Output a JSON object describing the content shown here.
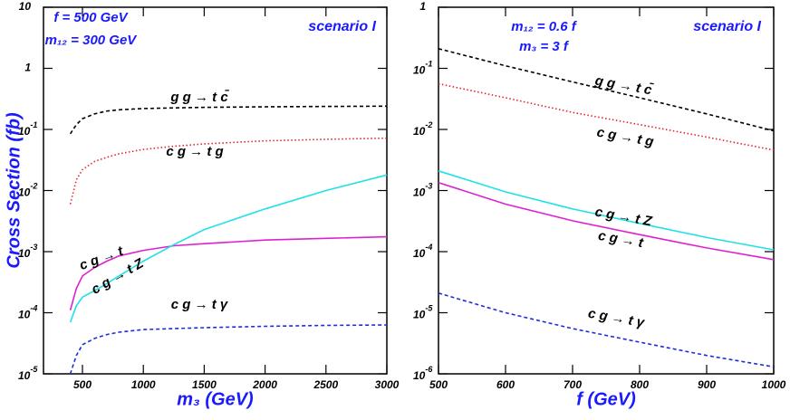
{
  "chart_data": [
    {
      "type": "line",
      "log_y": true,
      "x_label": "m₃ (GeV)",
      "y_label": "Cross Section (fb)",
      "annotations": [
        "f = 500 GeV",
        "m₁₂ = 300 GeV",
        "scenario I"
      ],
      "xlim": [
        180,
        3000
      ],
      "xticks": [
        500,
        1000,
        1500,
        2000,
        2500,
        3000
      ],
      "ylim": [
        1e-05,
        10
      ],
      "yticks": [
        10,
        1,
        {
          "value": 0.1,
          "label": "10",
          "exponent": "-1"
        },
        {
          "value": 0.01,
          "label": "10",
          "exponent": "-2"
        },
        {
          "value": 0.001,
          "label": "10",
          "exponent": "-3"
        },
        {
          "value": 0.0001,
          "label": "10",
          "exponent": "-4"
        },
        {
          "value": 1e-05,
          "label": "10",
          "exponent": "-5"
        }
      ],
      "x": [
        400,
        450,
        500,
        600,
        700,
        800,
        1000,
        1250,
        1500,
        2000,
        2500,
        3000
      ],
      "series": [
        {
          "name": "g g → t c̄",
          "color": "#000000",
          "style": "dashed",
          "values": [
            0.085,
            0.12,
            0.15,
            0.18,
            0.2,
            0.21,
            0.22,
            0.225,
            0.23,
            0.235,
            0.238,
            0.24
          ]
        },
        {
          "name": "c g → t g",
          "color": "#e8202a",
          "style": "dotted",
          "values": [
            0.006,
            0.015,
            0.022,
            0.03,
            0.035,
            0.04,
            0.047,
            0.053,
            0.058,
            0.065,
            0.069,
            0.072
          ]
        },
        {
          "name": "c g → t",
          "color": "#e020d0",
          "style": "solid",
          "values": [
            0.00011,
            0.00025,
            0.0004,
            0.00055,
            0.0007,
            0.00085,
            0.00105,
            0.00125,
            0.00135,
            0.00155,
            0.00165,
            0.00175
          ]
        },
        {
          "name": "c g → t Z",
          "color": "#20e0e8",
          "style": "solid",
          "values": [
            7e-05,
            0.00013,
            0.00018,
            0.00023,
            0.0003,
            0.0004,
            0.0007,
            0.0013,
            0.0023,
            0.005,
            0.01,
            0.018
          ]
        },
        {
          "name": "c g → t γ",
          "color": "#1a2ee0",
          "style": "dashed",
          "values": [
            1e-05,
            2e-05,
            3e-05,
            3.8e-05,
            4.4e-05,
            4.8e-05,
            5.3e-05,
            5.5e-05,
            5.7e-05,
            6e-05,
            6.2e-05,
            6.3e-05
          ]
        }
      ]
    },
    {
      "type": "line",
      "log_y": true,
      "x_label": "f (GeV)",
      "annotations": [
        "m₁₂ = 0.6 f",
        "m₃ = 3 f",
        "scenario I"
      ],
      "xlim": [
        500,
        1000
      ],
      "xticks": [
        500,
        600,
        700,
        800,
        900,
        1000
      ],
      "ylim": [
        1e-06,
        1
      ],
      "yticks": [
        1,
        {
          "value": 0.1,
          "label": "10",
          "exponent": "-1"
        },
        {
          "value": 0.01,
          "label": "10",
          "exponent": "-2"
        },
        {
          "value": 0.001,
          "label": "10",
          "exponent": "-3"
        },
        {
          "value": 0.0001,
          "label": "10",
          "exponent": "-4"
        },
        {
          "value": 1e-05,
          "label": "10",
          "exponent": "-5"
        },
        {
          "value": 1e-06,
          "label": "10",
          "exponent": "-6"
        }
      ],
      "x": [
        500,
        600,
        700,
        800,
        900,
        1000
      ],
      "series": [
        {
          "name": "g g → t c̄",
          "color": "#000000",
          "style": "dashed",
          "values": [
            0.21,
            0.11,
            0.06,
            0.033,
            0.018,
            0.0095
          ]
        },
        {
          "name": "c g → t g",
          "color": "#e8202a",
          "style": "dotted",
          "values": [
            0.056,
            0.033,
            0.019,
            0.012,
            0.0075,
            0.0046
          ]
        },
        {
          "name": "c g → t Z",
          "color": "#20e0e8",
          "style": "solid",
          "values": [
            0.0021,
            0.00095,
            0.0005,
            0.00029,
            0.00017,
            0.000107
          ]
        },
        {
          "name": "c g → t",
          "color": "#e020d0",
          "style": "solid",
          "values": [
            0.00135,
            0.0006,
            0.00032,
            0.00019,
            0.000115,
            7.4e-05
          ]
        },
        {
          "name": "c g → t γ",
          "color": "#1a2ee0",
          "style": "dashed",
          "values": [
            2.1e-05,
            1e-05,
            5.5e-06,
            3.3e-06,
            2e-06,
            1.3e-06
          ]
        }
      ]
    }
  ]
}
